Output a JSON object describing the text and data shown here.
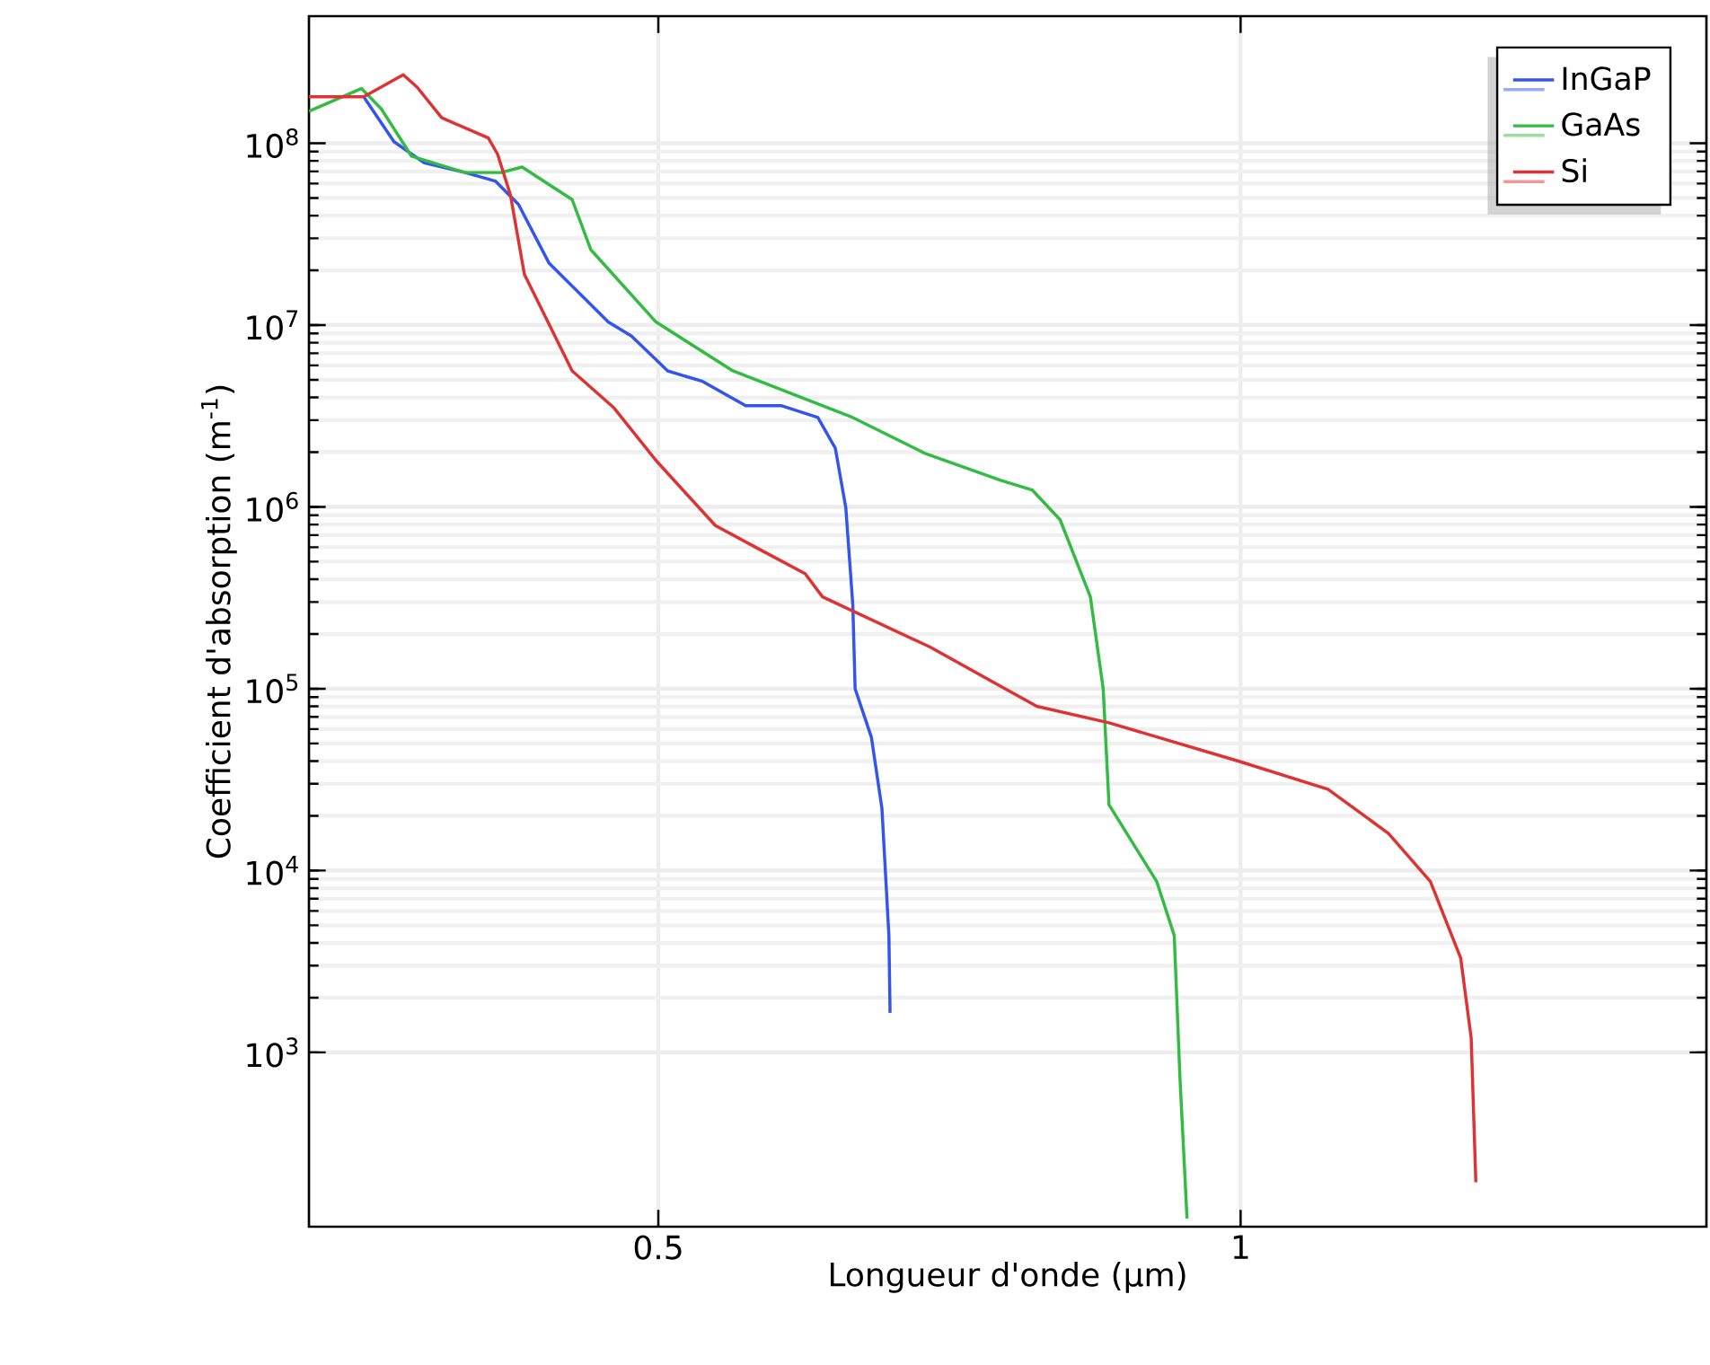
{
  "chart_data": {
    "type": "line",
    "xlabel": "Longueur d'onde (µm)",
    "ylabel": "Coefficient d'absorption (m$^{-1}$)",
    "log": "y",
    "xlim": [
      0.2,
      1.4
    ],
    "ylim": [
      110,
      500000000
    ],
    "xticks": [
      0.5,
      1
    ],
    "yticks": [
      {
        "value": 1000,
        "label": "10$^{3}$"
      },
      {
        "value": 10000,
        "label": "10$^{4}$"
      },
      {
        "value": 100000,
        "label": "10$^{5}$"
      },
      {
        "value": 1000000,
        "label": "10$^{6}$"
      },
      {
        "value": 10000000,
        "label": "10$^{7}$"
      },
      {
        "value": 100000000,
        "label": "10$^{8}$"
      }
    ],
    "grid": true,
    "legend": "top right",
    "marker": "none",
    "line_style": "solid",
    "series": [
      {
        "name": "InGaP",
        "color": "#3355ee",
        "x": [
          0.247,
          0.273,
          0.299,
          0.334,
          0.36,
          0.38,
          0.406,
          0.457,
          0.477,
          0.508,
          0.538,
          0.575,
          0.606,
          0.637,
          0.652,
          0.661,
          0.667,
          0.669,
          0.683,
          0.692,
          0.698,
          0.699
        ],
        "values": [
          180000000,
          102000000,
          78000000,
          69000000,
          62000000,
          46000000,
          22000000,
          10400000,
          8700000,
          5600000,
          4900000,
          3600000,
          3600000,
          3100000,
          2100000,
          990000,
          290000,
          100000,
          54000,
          22000,
          4400,
          1650
        ]
      },
      {
        "name": "GaAs",
        "color": "#33bb44",
        "x": [
          0.2,
          0.245,
          0.262,
          0.288,
          0.334,
          0.365,
          0.383,
          0.426,
          0.442,
          0.498,
          0.564,
          0.667,
          0.729,
          0.794,
          0.821,
          0.845,
          0.871,
          0.882,
          0.887,
          0.928,
          0.943,
          0.948,
          0.954
        ],
        "values": [
          150000000,
          200000000,
          155000000,
          85000000,
          69000000,
          69000000,
          74000000,
          49000000,
          26000000,
          10400000,
          5600000,
          3100000,
          1970000,
          1400000,
          1240000,
          850000,
          320000,
          100000,
          23000,
          8700,
          4400,
          710,
          122
        ]
      },
      {
        "name": "Si",
        "color": "#dd3333",
        "x": [
          0.2,
          0.247,
          0.281,
          0.293,
          0.314,
          0.354,
          0.362,
          0.373,
          0.385,
          0.426,
          0.462,
          0.498,
          0.549,
          0.59,
          0.626,
          0.641,
          0.733,
          0.825,
          0.887,
          0.998,
          1.075,
          1.127,
          1.163,
          1.189,
          1.198,
          1.202
        ],
        "values": [
          180000000,
          180000000,
          238000000,
          203000000,
          138000000,
          107000000,
          87000000,
          52000000,
          19000000,
          5600000,
          3500000,
          1800000,
          790000,
          570000,
          430000,
          320000,
          170000,
          80000,
          65000,
          40000,
          28000,
          16000,
          8700,
          3300,
          1200,
          193
        ]
      }
    ]
  }
}
